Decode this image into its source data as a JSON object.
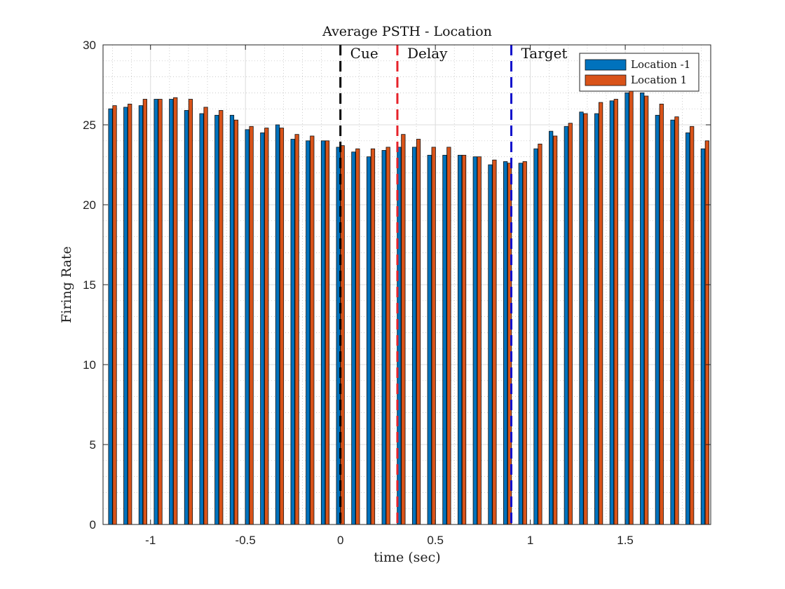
{
  "chart_data": {
    "type": "bar",
    "title": "Average PSTH - Location",
    "xlabel": "time (sec)",
    "ylabel": "Firing Rate",
    "xlim": [
      -1.25,
      1.95
    ],
    "ylim": [
      0,
      30
    ],
    "x_ticks": [
      -1,
      -0.5,
      0,
      0.5,
      1,
      1.5
    ],
    "x_tick_labels": [
      "-1",
      "-0.5",
      "0",
      "0.5",
      "1",
      "1.5"
    ],
    "y_ticks": [
      0,
      5,
      10,
      15,
      20,
      25,
      30
    ],
    "y_tick_labels": [
      "0",
      "5",
      "10",
      "15",
      "20",
      "25",
      "30"
    ],
    "grid": true,
    "minor_grid": true,
    "legend_position": "top-right",
    "x": [
      -1.2,
      -1.12,
      -1.04,
      -0.96,
      -0.88,
      -0.8,
      -0.72,
      -0.64,
      -0.56,
      -0.48,
      -0.4,
      -0.32,
      -0.24,
      -0.16,
      -0.08,
      0.0,
      0.08,
      0.16,
      0.24,
      0.32,
      0.4,
      0.48,
      0.56,
      0.64,
      0.72,
      0.8,
      0.88,
      0.96,
      1.04,
      1.12,
      1.2,
      1.28,
      1.36,
      1.44,
      1.52,
      1.6,
      1.68,
      1.76,
      1.84,
      1.92
    ],
    "series": [
      {
        "name": "Location -1",
        "color": "#0072BD",
        "values": [
          26.0,
          26.1,
          26.2,
          26.6,
          26.6,
          25.9,
          25.7,
          25.6,
          25.6,
          24.7,
          24.5,
          25.0,
          24.1,
          24.0,
          24.0,
          23.6,
          23.3,
          23.0,
          23.4,
          23.6,
          23.6,
          23.1,
          23.1,
          23.1,
          23.0,
          22.5,
          22.7,
          22.6,
          23.5,
          24.6,
          24.9,
          25.8,
          25.7,
          26.5,
          27.0,
          27.0,
          25.6,
          25.3,
          24.5,
          23.5
        ]
      },
      {
        "name": "Location 1",
        "color": "#D95319",
        "values": [
          26.2,
          26.3,
          26.6,
          26.6,
          26.7,
          26.6,
          26.1,
          25.9,
          25.3,
          24.9,
          24.8,
          24.8,
          24.4,
          24.3,
          24.0,
          23.7,
          23.5,
          23.5,
          23.6,
          24.4,
          24.1,
          23.6,
          23.6,
          23.1,
          23.0,
          22.8,
          22.6,
          22.7,
          23.8,
          24.3,
          25.1,
          25.7,
          26.4,
          26.6,
          27.1,
          26.8,
          26.3,
          25.5,
          24.9,
          24.0
        ]
      }
    ],
    "annotations": [
      {
        "label": "Cue",
        "x": 0.0,
        "color": "#000000"
      },
      {
        "label": "Delay",
        "x": 0.3,
        "color": "#E6222A"
      },
      {
        "label": "Target",
        "x": 0.9,
        "color": "#1010CC"
      }
    ]
  }
}
